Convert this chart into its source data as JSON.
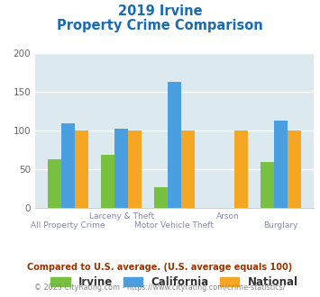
{
  "title_line1": "2019 Irvine",
  "title_line2": "Property Crime Comparison",
  "cat_labels_top": [
    "",
    "Larceny & Theft",
    "",
    "Arson",
    ""
  ],
  "cat_labels_bot": [
    "All Property Crime",
    "",
    "Motor Vehicle Theft",
    "",
    "Burglary"
  ],
  "irvine": [
    63,
    69,
    27,
    0,
    60
  ],
  "california": [
    110,
    103,
    163,
    0,
    113
  ],
  "national": [
    100,
    100,
    100,
    100,
    100
  ],
  "color_irvine": "#78c040",
  "color_california": "#4a9fe0",
  "color_national": "#f5a623",
  "background_color": "#dceaf0",
  "ylim": [
    0,
    200
  ],
  "yticks": [
    0,
    50,
    100,
    150,
    200
  ],
  "footnote1": "Compared to U.S. average. (U.S. average equals 100)",
  "footnote2": "© 2025 CityRating.com - https://www.cityrating.com/crime-statistics/",
  "legend_labels": [
    "Irvine",
    "California",
    "National"
  ],
  "title_color": "#1a6bb5",
  "footnote1_color": "#993300",
  "footnote2_color": "#888888",
  "label_color": "#8888aa"
}
